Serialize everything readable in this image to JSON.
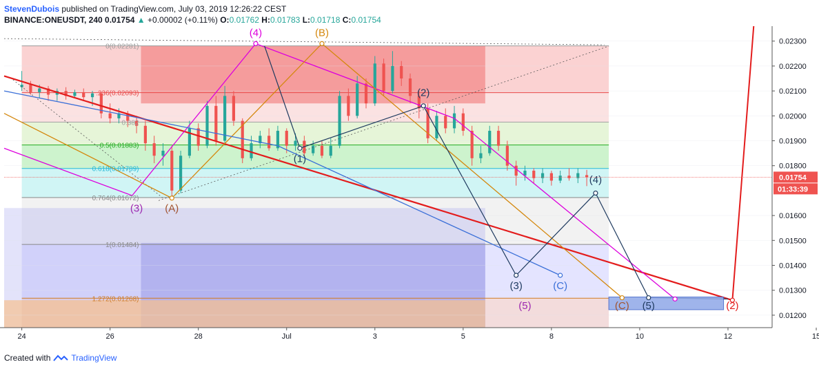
{
  "header": {
    "author": "StevenDubois",
    "published": "published on TradingView.com, July 03, 2019 12:26:22 CEST",
    "symbol": "BINANCE:ONEUSDT, 240",
    "last": "0.01754",
    "change": "+0.00002 (+0.11%)",
    "o_label": "O:",
    "o_value": "0.01762",
    "h_label": "H:",
    "h_value": "0.01783",
    "l_label": "L:",
    "l_value": "0.01718",
    "c_label": "C:",
    "c_value": "0.01754"
  },
  "footer": {
    "created_with": "Created with",
    "brand": "TradingView"
  },
  "colors": {
    "up": "#26a69a",
    "down": "#ef5350",
    "red_trend": "#e31c1c",
    "magenta": "#dd00dd",
    "orange": "#d4880e",
    "navy": "#1e3a5f",
    "blue": "#3a6fd8",
    "purple": "#9c27b0",
    "brown": "#a0522d"
  },
  "chart_data": {
    "type": "candlestick",
    "symbol": "BINANCE:ONEUSDT",
    "interval": "240",
    "x_ticks": [
      "24",
      "26",
      "28",
      "Jul",
      "3",
      "5",
      "8",
      "10",
      "12",
      "15"
    ],
    "y_ticks": [
      "0.02300",
      "0.02200",
      "0.02100",
      "0.02000",
      "0.01900",
      "0.01800",
      "0.01600",
      "0.01500",
      "0.01400",
      "0.01300",
      "0.01200"
    ],
    "ylim": [
      0.0115,
      0.0236
    ],
    "price_label": "0.01754",
    "countdown_label": "01:33:39",
    "candles": [
      [
        23.3,
        0.02115,
        0.02125,
        0.0218,
        0.021
      ],
      [
        23.5,
        0.02125,
        0.02095,
        0.0214,
        0.02085
      ],
      [
        23.7,
        0.02095,
        0.0211,
        0.02125,
        0.0207
      ],
      [
        23.9,
        0.0211,
        0.02085,
        0.0212,
        0.0206
      ],
      [
        24.1,
        0.02085,
        0.021,
        0.0211,
        0.0206
      ],
      [
        24.3,
        0.021,
        0.0208,
        0.02115,
        0.02065
      ],
      [
        24.5,
        0.0208,
        0.02095,
        0.02105,
        0.0207
      ],
      [
        24.7,
        0.02095,
        0.02075,
        0.0211,
        0.0206
      ],
      [
        24.9,
        0.02075,
        0.0209,
        0.021,
        0.0204
      ],
      [
        25.1,
        0.0209,
        0.0201,
        0.02095,
        0.0199
      ],
      [
        25.3,
        0.0201,
        0.0199,
        0.0205,
        0.0197
      ],
      [
        25.5,
        0.0199,
        0.0201,
        0.0203,
        0.0197
      ],
      [
        25.7,
        0.0201,
        0.0198,
        0.0202,
        0.01955
      ],
      [
        25.9,
        0.0198,
        0.0196,
        0.02,
        0.0193
      ],
      [
        26.1,
        0.0196,
        0.0189,
        0.0198,
        0.0186
      ],
      [
        26.3,
        0.0189,
        0.0184,
        0.0192,
        0.0181
      ],
      [
        26.5,
        0.0184,
        0.0186,
        0.0189,
        0.018
      ],
      [
        26.7,
        0.0186,
        0.017,
        0.0188,
        0.0168
      ],
      [
        26.9,
        0.017,
        0.0184,
        0.0186,
        0.0169
      ],
      [
        27.1,
        0.0184,
        0.0195,
        0.0198,
        0.0183
      ],
      [
        27.3,
        0.0195,
        0.0188,
        0.0197,
        0.0186
      ],
      [
        27.5,
        0.0188,
        0.0204,
        0.0206,
        0.0187
      ],
      [
        27.7,
        0.0204,
        0.019,
        0.0208,
        0.0188
      ],
      [
        27.9,
        0.019,
        0.0208,
        0.0212,
        0.0189
      ],
      [
        28.1,
        0.0208,
        0.0198,
        0.021,
        0.0196
      ],
      [
        28.3,
        0.0198,
        0.0183,
        0.0199,
        0.0181
      ],
      [
        28.5,
        0.0183,
        0.0189,
        0.0192,
        0.0182
      ],
      [
        28.7,
        0.0189,
        0.0192,
        0.0194,
        0.0187
      ],
      [
        28.9,
        0.0192,
        0.0187,
        0.0195,
        0.0186
      ],
      [
        29.1,
        0.0187,
        0.0194,
        0.0196,
        0.0186
      ],
      [
        29.3,
        0.0194,
        0.0188,
        0.0195,
        0.0185
      ],
      [
        29.5,
        0.0188,
        0.019,
        0.0193,
        0.0186
      ],
      [
        29.7,
        0.019,
        0.0185,
        0.0192,
        0.0184
      ],
      [
        29.9,
        0.0185,
        0.0188,
        0.019,
        0.0184
      ],
      [
        30.1,
        0.0188,
        0.0184,
        0.019,
        0.0183
      ],
      [
        30.3,
        0.0184,
        0.0188,
        0.0191,
        0.0183
      ],
      [
        30.5,
        0.0188,
        0.0208,
        0.021,
        0.0187
      ],
      [
        30.7,
        0.0208,
        0.02,
        0.0211,
        0.0198
      ],
      [
        30.9,
        0.02,
        0.0213,
        0.0216,
        0.0199
      ],
      [
        31.1,
        0.0213,
        0.0205,
        0.0215,
        0.0203
      ],
      [
        31.3,
        0.0205,
        0.0221,
        0.0224,
        0.0204
      ],
      [
        31.5,
        0.0221,
        0.021,
        0.0223,
        0.0208
      ],
      [
        31.7,
        0.021,
        0.022,
        0.0226,
        0.0209
      ],
      [
        31.9,
        0.022,
        0.0215,
        0.0222,
        0.0212
      ],
      [
        32.1,
        0.0215,
        0.0208,
        0.0217,
        0.0205
      ],
      [
        32.3,
        0.0208,
        0.0203,
        0.021,
        0.0199
      ],
      [
        32.5,
        0.0203,
        0.0191,
        0.0205,
        0.0189
      ],
      [
        32.7,
        0.0191,
        0.02,
        0.0202,
        0.019
      ],
      [
        32.9,
        0.02,
        0.0195,
        0.0203,
        0.0193
      ],
      [
        33.1,
        0.0195,
        0.0201,
        0.0204,
        0.0193
      ],
      [
        33.3,
        0.0201,
        0.0194,
        0.0203,
        0.0192
      ],
      [
        33.5,
        0.0194,
        0.0183,
        0.0196,
        0.018
      ],
      [
        33.7,
        0.0183,
        0.0185,
        0.0188,
        0.0181
      ],
      [
        33.9,
        0.0185,
        0.0194,
        0.0196,
        0.0184
      ],
      [
        34.1,
        0.0194,
        0.0188,
        0.0196,
        0.0186
      ],
      [
        34.3,
        0.0188,
        0.018,
        0.019,
        0.0178
      ],
      [
        34.5,
        0.018,
        0.0176,
        0.0182,
        0.0172
      ],
      [
        34.7,
        0.0176,
        0.0178,
        0.018,
        0.0174
      ],
      [
        34.9,
        0.0178,
        0.0175,
        0.0179,
        0.0173
      ],
      [
        35.1,
        0.0175,
        0.0177,
        0.0179,
        0.0173
      ],
      [
        35.3,
        0.0177,
        0.0174,
        0.0178,
        0.0172
      ],
      [
        35.5,
        0.0174,
        0.0176,
        0.0178,
        0.0173
      ],
      [
        35.7,
        0.0176,
        0.0175,
        0.0179,
        0.0174
      ],
      [
        35.9,
        0.0175,
        0.0177,
        0.0179,
        0.0173
      ],
      [
        36.1,
        0.01762,
        0.01754,
        0.01783,
        0.01718
      ]
    ],
    "fib_levels": [
      {
        "label": "0(0.02281)",
        "value": 0.02281
      },
      {
        "label": ".236(0.02093)",
        "value": 0.02093
      },
      {
        "label": "0.382",
        "value": 0.01975
      },
      {
        "label": "0.5(0.01883)",
        "value": 0.01883
      },
      {
        "label": "0.618(0.01789)",
        "value": 0.01789
      },
      {
        "label": "0.764(0.01672)",
        "value": 0.01672
      },
      {
        "label": "1(0.01484)",
        "value": 0.01484
      },
      {
        "label": "1.272(0.01268)",
        "value": 0.01268
      }
    ],
    "wave_labels": [
      "(4)",
      "(B)",
      "(2)",
      "(1)",
      "(3)",
      "(A)",
      "(4)",
      "(C)",
      "(3)",
      "(5)",
      "(C)",
      "(5)",
      "(2)"
    ]
  }
}
